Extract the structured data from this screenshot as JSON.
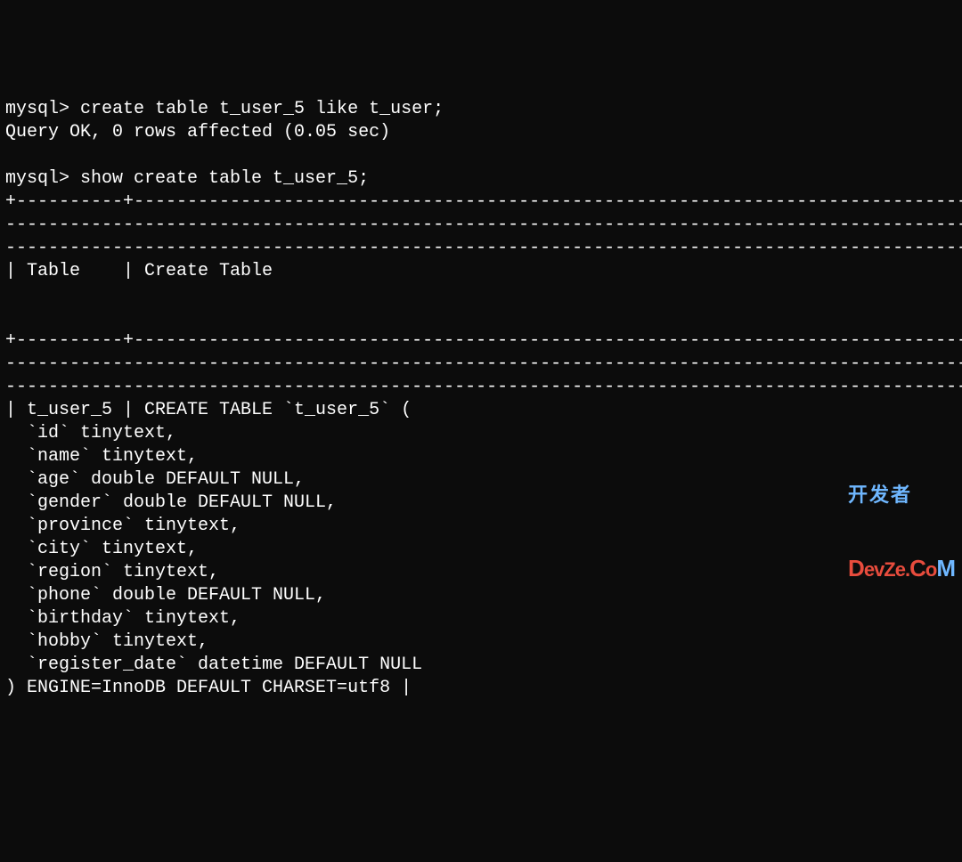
{
  "terminal": {
    "background_color": "#0c0c0c",
    "text_color": "#ffffff",
    "font_family": "Consolas, monospace",
    "font_size": 20,
    "lines": {
      "prompt1": "mysql> create table t_user_5 like t_user;",
      "response1": "Query OK, 0 rows affected (0.05 sec)",
      "blank1": "",
      "prompt2": "mysql> show create table t_user_5;",
      "sep1a": "+----------+------------------------------------------------------------------------------------",
      "sep1b": "-----------------------------------------------------------------------------------------------------",
      "sep1c": "----------------------------------------------------------------------------------------------------+",
      "header": "| Table    | Create Table                                                                         ",
      "headerblank1": "",
      "headerend": "                                                                                                    |",
      "sep2a": "+----------+------------------------------------------------------------------------------------",
      "sep2b": "-----------------------------------------------------------------------------------------------------",
      "sep2c": "----------------------------------------------------------------------------------------------------+",
      "row1": "| t_user_5 | CREATE TABLE `t_user_5` (",
      "col1": "  `id` tinytext,",
      "col2": "  `name` tinytext,",
      "col3": "  `age` double DEFAULT NULL,",
      "col4": "  `gender` double DEFAULT NULL,",
      "col5": "  `province` tinytext,",
      "col6": "  `city` tinytext,",
      "col7": "  `region` tinytext,",
      "col8": "  `phone` double DEFAULT NULL,",
      "col9": "  `birthday` tinytext,",
      "col10": "  `hobby` tinytext,",
      "col11": "  `register_date` datetime DEFAULT NULL",
      "rowend": ") ENGINE=InnoDB DEFAULT CHARSET=utf8 |"
    }
  },
  "watermark": {
    "top": "开发者",
    "bottom_d": "D",
    "bottom_evz": "evZ",
    "bottom_e": "e.",
    "bottom_c": "C",
    "bottom_o": "o",
    "bottom_m": "M"
  }
}
